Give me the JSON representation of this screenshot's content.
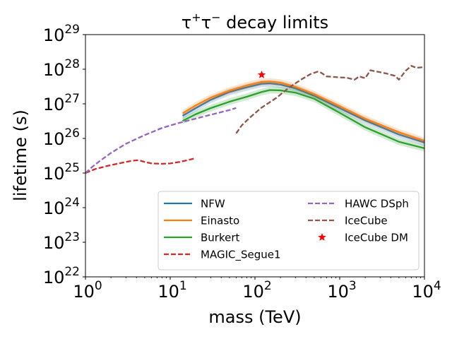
{
  "chart_data": {
    "type": "line",
    "title": "τ⁺τ⁻ decay limits",
    "title_parts": {
      "base": "τ",
      "sup1": "+",
      "mid": "τ",
      "sup2": "−",
      "rest": " decay limits"
    },
    "xlabel": "mass (TeV)",
    "ylabel": "lifetime (s)",
    "xscale": "log",
    "yscale": "log",
    "xlim": [
      1,
      10000
    ],
    "ylim": [
      1e+22,
      1e+29
    ],
    "x_ticks": [
      {
        "base": "10",
        "exp": "0",
        "value": 1
      },
      {
        "base": "10",
        "exp": "1",
        "value": 10
      },
      {
        "base": "10",
        "exp": "2",
        "value": 100
      },
      {
        "base": "10",
        "exp": "3",
        "value": 1000
      },
      {
        "base": "10",
        "exp": "4",
        "value": 10000
      }
    ],
    "y_ticks": [
      {
        "base": "10",
        "exp": "22",
        "value": 1e+22
      },
      {
        "base": "10",
        "exp": "23",
        "value": 1e+23
      },
      {
        "base": "10",
        "exp": "24",
        "value": 1e+24
      },
      {
        "base": "10",
        "exp": "25",
        "value": 1e+25
      },
      {
        "base": "10",
        "exp": "26",
        "value": 1e+26
      },
      {
        "base": "10",
        "exp": "27",
        "value": 1e+27
      },
      {
        "base": "10",
        "exp": "28",
        "value": 1e+28
      },
      {
        "base": "10",
        "exp": "29",
        "value": 1e+29
      }
    ],
    "legend_position": "lower-right",
    "series": [
      {
        "name": "NFW",
        "color": "#1f77b4",
        "style": "solid",
        "band": true,
        "x": [
          14,
          20,
          30,
          50,
          80,
          120,
          150,
          200,
          300,
          500,
          1000,
          2000,
          5000,
          10000
        ],
        "y": [
          4.5e+26,
          7.5e+26,
          1.3e+27,
          2.2e+27,
          3e+27,
          3.8e+27,
          3.9e+27,
          3.6e+27,
          2.8e+27,
          1.7e+27,
          7.5e+26,
          3.3e+26,
          1.3e+26,
          7.6e+25
        ]
      },
      {
        "name": "Einasto",
        "color": "#ff7f0e",
        "style": "solid",
        "band": true,
        "x": [
          14,
          20,
          30,
          50,
          80,
          120,
          150,
          200,
          300,
          500,
          1000,
          2000,
          5000,
          10000
        ],
        "y": [
          5.3e+26,
          9e+26,
          1.5e+27,
          2.4e+27,
          3.4e+27,
          4.3e+27,
          4.4e+27,
          4.1e+27,
          3.1e+27,
          1.9e+27,
          8.5e+26,
          3.7e+26,
          1.5e+26,
          8.5e+25
        ]
      },
      {
        "name": "Burkert",
        "color": "#2ca02c",
        "style": "solid",
        "band": true,
        "x": [
          14,
          20,
          30,
          50,
          80,
          120,
          150,
          200,
          300,
          500,
          1000,
          2000,
          5000,
          10000
        ],
        "y": [
          3.2e+26,
          5e+26,
          7.5e+26,
          1.15e+27,
          1.6e+27,
          2.2e+27,
          2.5e+27,
          2.45e+27,
          2.1e+27,
          1.4e+27,
          5.5e+26,
          2.1e+26,
          8e+25,
          5.2e+25
        ]
      },
      {
        "name": "MAGIC_Segue1",
        "color": "#d62728",
        "style": "dashed",
        "band": false,
        "x": [
          1,
          1.3,
          1.8,
          2.5,
          3.5,
          4.2,
          5,
          6,
          8,
          10,
          13,
          16,
          20
        ],
        "y": [
          1e+25,
          1.3e+25,
          1.6e+25,
          1.9e+25,
          2.25e+25,
          2.35e+25,
          2.1e+25,
          1.9e+25,
          1.85e+25,
          1.9e+25,
          2.1e+25,
          2.35e+25,
          2.7e+25
        ]
      },
      {
        "name": "HAWC DSph",
        "color": "#9467bd",
        "style": "dashed",
        "band": false,
        "x": [
          1,
          1.2,
          1.5,
          2,
          3,
          5,
          8,
          12,
          18,
          25,
          35,
          50,
          60
        ],
        "y": [
          1e+25,
          1.5e+25,
          2.3e+25,
          3.8e+25,
          7e+25,
          1.25e+26,
          2e+26,
          2.7e+26,
          3.5e+26,
          4.3e+26,
          5.3e+26,
          6.6e+26,
          7.6e+26
        ]
      },
      {
        "name": "IceCube",
        "color": "#8c564b",
        "style": "dashed",
        "band": false,
        "x": [
          60,
          70,
          90,
          120,
          180,
          250,
          350,
          450,
          550,
          600,
          700,
          1000,
          1200,
          1500,
          1700,
          2000,
          2300,
          2700,
          3500,
          4500,
          5000,
          6000,
          7000,
          8000,
          10000
        ],
        "y": [
          1.4e+26,
          2.4e+26,
          4.3e+26,
          7.8e+26,
          1.5e+27,
          2.9e+27,
          5e+27,
          7.2e+27,
          8.5e+27,
          8e+27,
          6.2e+27,
          5.8e+27,
          5.7e+27,
          5e+27,
          6.2e+27,
          5.5e+27,
          9.3e+27,
          8.6e+27,
          7.6e+27,
          6.4e+27,
          5e+27,
          9e+27,
          1.25e+28,
          1.1e+28,
          1.15e+28
        ]
      }
    ],
    "markers": [
      {
        "name": "IceCube DM",
        "x": 120,
        "y": 6.9e+27,
        "color": "#ff0000",
        "symbol": "star"
      }
    ],
    "legend": [
      {
        "label": "NFW",
        "color": "#1f77b4",
        "style": "solid"
      },
      {
        "label": "Einasto",
        "color": "#ff7f0e",
        "style": "solid"
      },
      {
        "label": "Burkert",
        "color": "#2ca02c",
        "style": "solid"
      },
      {
        "label": "MAGIC_Segue1",
        "color": "#d62728",
        "style": "dashed"
      },
      {
        "label": "HAWC DSph",
        "color": "#9467bd",
        "style": "dashed"
      },
      {
        "label": "IceCube",
        "color": "#8c564b",
        "style": "dashed"
      },
      {
        "label": "IceCube DM",
        "color": "#ff0000",
        "style": "star"
      }
    ]
  }
}
